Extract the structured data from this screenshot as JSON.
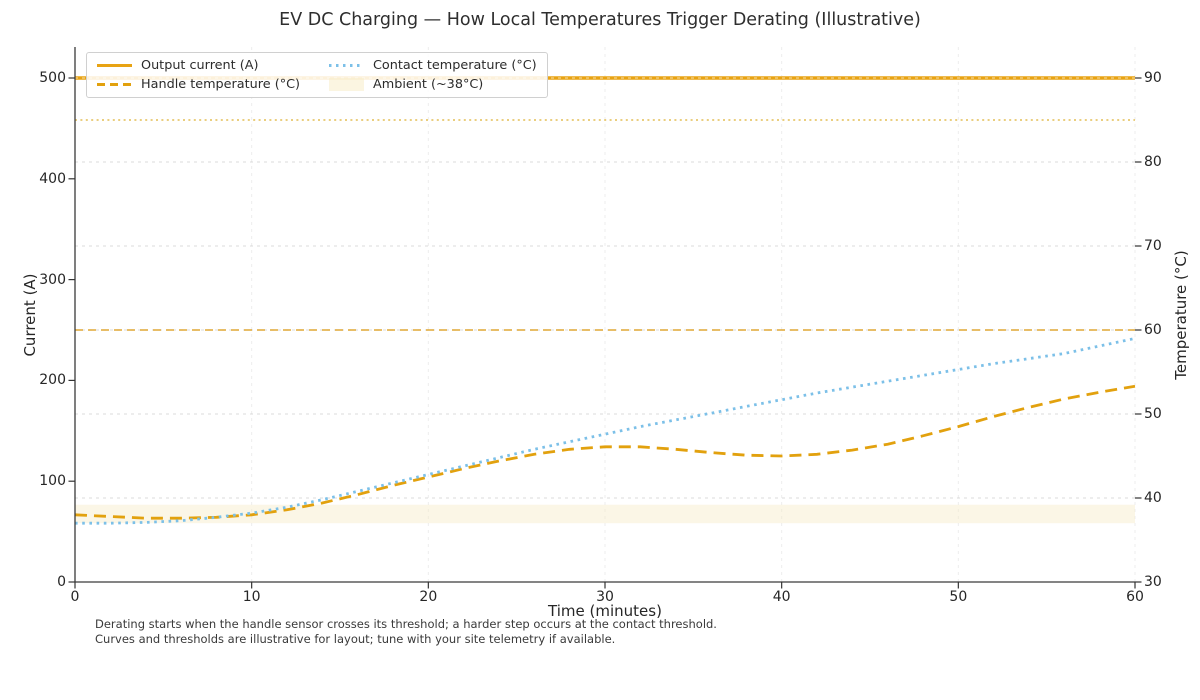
{
  "title": "EV DC Charging — How Local Temperatures Trigger Derating (Illustrative)",
  "footnote": {
    "line1": "Derating starts when the handle sensor crosses its threshold; a harder step occurs at the contact threshold.",
    "line2": "Curves and thresholds are illustrative for layout; tune with your site telemetry if available."
  },
  "legend": {
    "position": "upper left",
    "items": [
      {
        "label": "Output current (A)",
        "swatch": "solid-line",
        "color": "#E8A313"
      },
      {
        "label": "Handle temperature (°C)",
        "swatch": "dashed-line",
        "color": "#E2A10E"
      },
      {
        "label": "Contact temperature (°C)",
        "swatch": "dotted-line",
        "color": "#7CC0E8"
      },
      {
        "label": "Ambient (~38°C)",
        "swatch": "patch",
        "color": "#F7ECC8"
      }
    ]
  },
  "chart_data": {
    "type": "line",
    "title": "EV DC Charging — How Local Temperatures Trigger Derating (Illustrative)",
    "xlabel": "Time (minutes)",
    "ylabel_left": "Current (A)",
    "ylabel_right": "Temperature (°C)",
    "x_range": [
      0,
      60
    ],
    "y_left_range": [
      0,
      500
    ],
    "y_right_range": [
      30,
      90
    ],
    "x_ticks": [
      0,
      10,
      20,
      30,
      40,
      50,
      60
    ],
    "y_left_ticks": [
      0,
      100,
      200,
      300,
      400,
      500
    ],
    "y_right_ticks": [
      30,
      40,
      50,
      60,
      70,
      80,
      90
    ],
    "grid": "both axes, light dashed gridlines",
    "x": [
      0,
      2,
      4,
      6,
      8,
      10,
      12,
      14,
      16,
      18,
      20,
      22,
      24,
      26,
      28,
      30,
      32,
      34,
      36,
      38,
      40,
      42,
      44,
      46,
      48,
      50,
      52,
      54,
      56,
      58,
      60
    ],
    "series": [
      {
        "name": "Output current (A)",
        "axis": "left",
        "style": "solid",
        "width": 3.6,
        "color": "#E8A313",
        "values": [
          500,
          500,
          500,
          500,
          500,
          500,
          500,
          500,
          500,
          500,
          500,
          500,
          500,
          500,
          500,
          500,
          500,
          500,
          500,
          500,
          500,
          500,
          500,
          500,
          500,
          500,
          500,
          500,
          500,
          500,
          500
        ]
      },
      {
        "name": "Handle temperature (°C)",
        "axis": "right",
        "style": "dashed",
        "width": 2.8,
        "color": "#E2A10E",
        "values": [
          38.0,
          37.8,
          37.6,
          37.6,
          37.7,
          38.0,
          38.6,
          39.4,
          40.4,
          41.5,
          42.5,
          43.5,
          44.4,
          45.2,
          45.8,
          46.1,
          46.1,
          45.8,
          45.4,
          45.1,
          45.0,
          45.2,
          45.7,
          46.4,
          47.4,
          48.5,
          49.7,
          50.8,
          51.8,
          52.6,
          53.3
        ]
      },
      {
        "name": "Contact temperature (°C)",
        "axis": "right",
        "style": "dotted",
        "width": 2.8,
        "color": "#7CC0E8",
        "values": [
          37.0,
          37.0,
          37.1,
          37.3,
          37.7,
          38.2,
          38.9,
          39.8,
          40.8,
          41.8,
          42.8,
          43.8,
          44.8,
          45.8,
          46.7,
          47.6,
          48.5,
          49.3,
          50.1,
          50.9,
          51.7,
          52.5,
          53.2,
          53.9,
          54.6,
          55.3,
          56.0,
          56.6,
          57.2,
          58.1,
          59.0
        ]
      }
    ],
    "thresholds": [
      {
        "name": "Handle derating threshold",
        "axis": "right",
        "value": 60,
        "style": "dashed",
        "width": 1.6,
        "color": "#DFA32B"
      },
      {
        "name": "Contact derating threshold",
        "axis": "right",
        "value": 85,
        "style": "dotted",
        "width": 1.8,
        "color": "#E6C365"
      }
    ],
    "ambient_band": {
      "axis": "right",
      "from": 37.0,
      "to": 39.2,
      "color": "#F7ECC8",
      "opacity": 0.45,
      "label": "Ambient (~38°C)"
    }
  }
}
